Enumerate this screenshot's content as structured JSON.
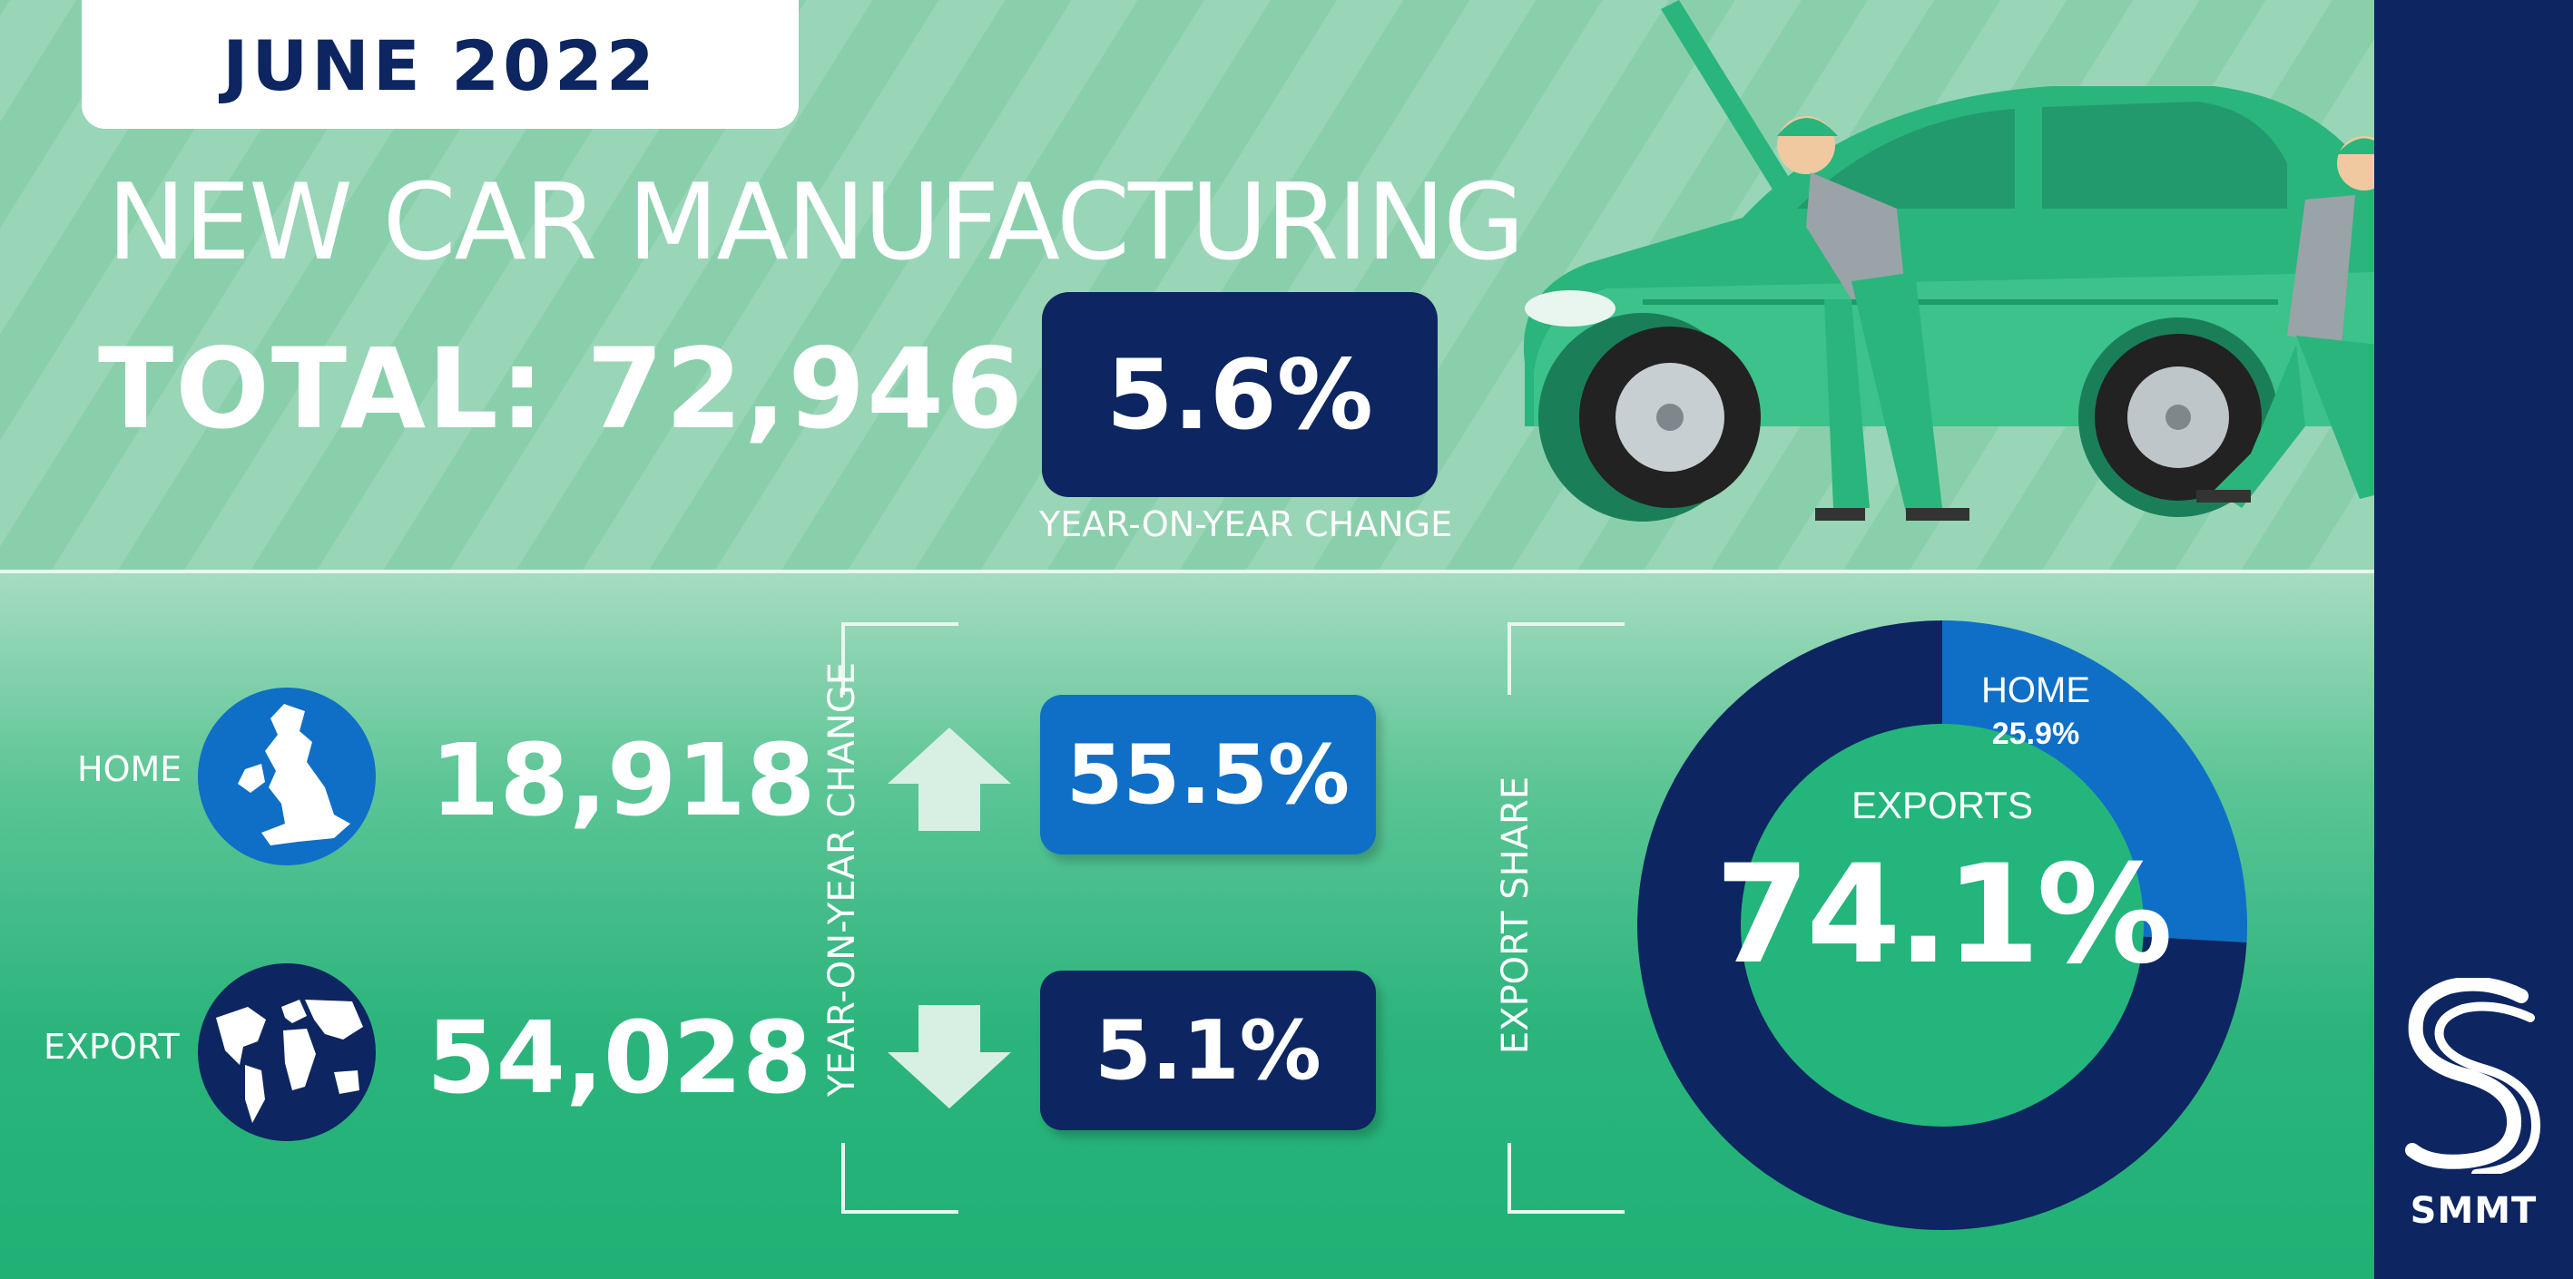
{
  "header": {
    "month": "JUNE 2022",
    "headline": "NEW CAR MANUFACTURING",
    "total_label": "TOTAL:",
    "total_value": "72,946",
    "yoy_value": "5.6%",
    "yoy_caption": "YEAR-ON-YEAR CHANGE"
  },
  "rows": [
    {
      "label": "HOME",
      "value": "18,918",
      "change": "55.5%",
      "direction": "up",
      "box_color": "#0f6fc6",
      "icon": "uk-map-icon"
    },
    {
      "label": "EXPORT",
      "value": "54,028",
      "change": "5.1%",
      "direction": "down",
      "box_color": "#0d2561",
      "icon": "world-map-icon"
    }
  ],
  "side_labels": {
    "change": "YEAR-ON-YEAR CHANGE",
    "share": "EXPORT SHARE"
  },
  "chart_data": {
    "type": "pie",
    "style": "donut",
    "categories": [
      "EXPORTS",
      "HOME"
    ],
    "values": [
      74.1,
      25.9
    ],
    "labels": [
      "74.1%",
      "25.9%"
    ],
    "colors": [
      "#0d2561",
      "#0f6fc6"
    ]
  },
  "brand": {
    "name": "SMMT"
  },
  "colors": {
    "navy": "#0d2561",
    "blue": "#0f6fc6",
    "green": "#1fb175",
    "light_green": "#8acfac"
  }
}
